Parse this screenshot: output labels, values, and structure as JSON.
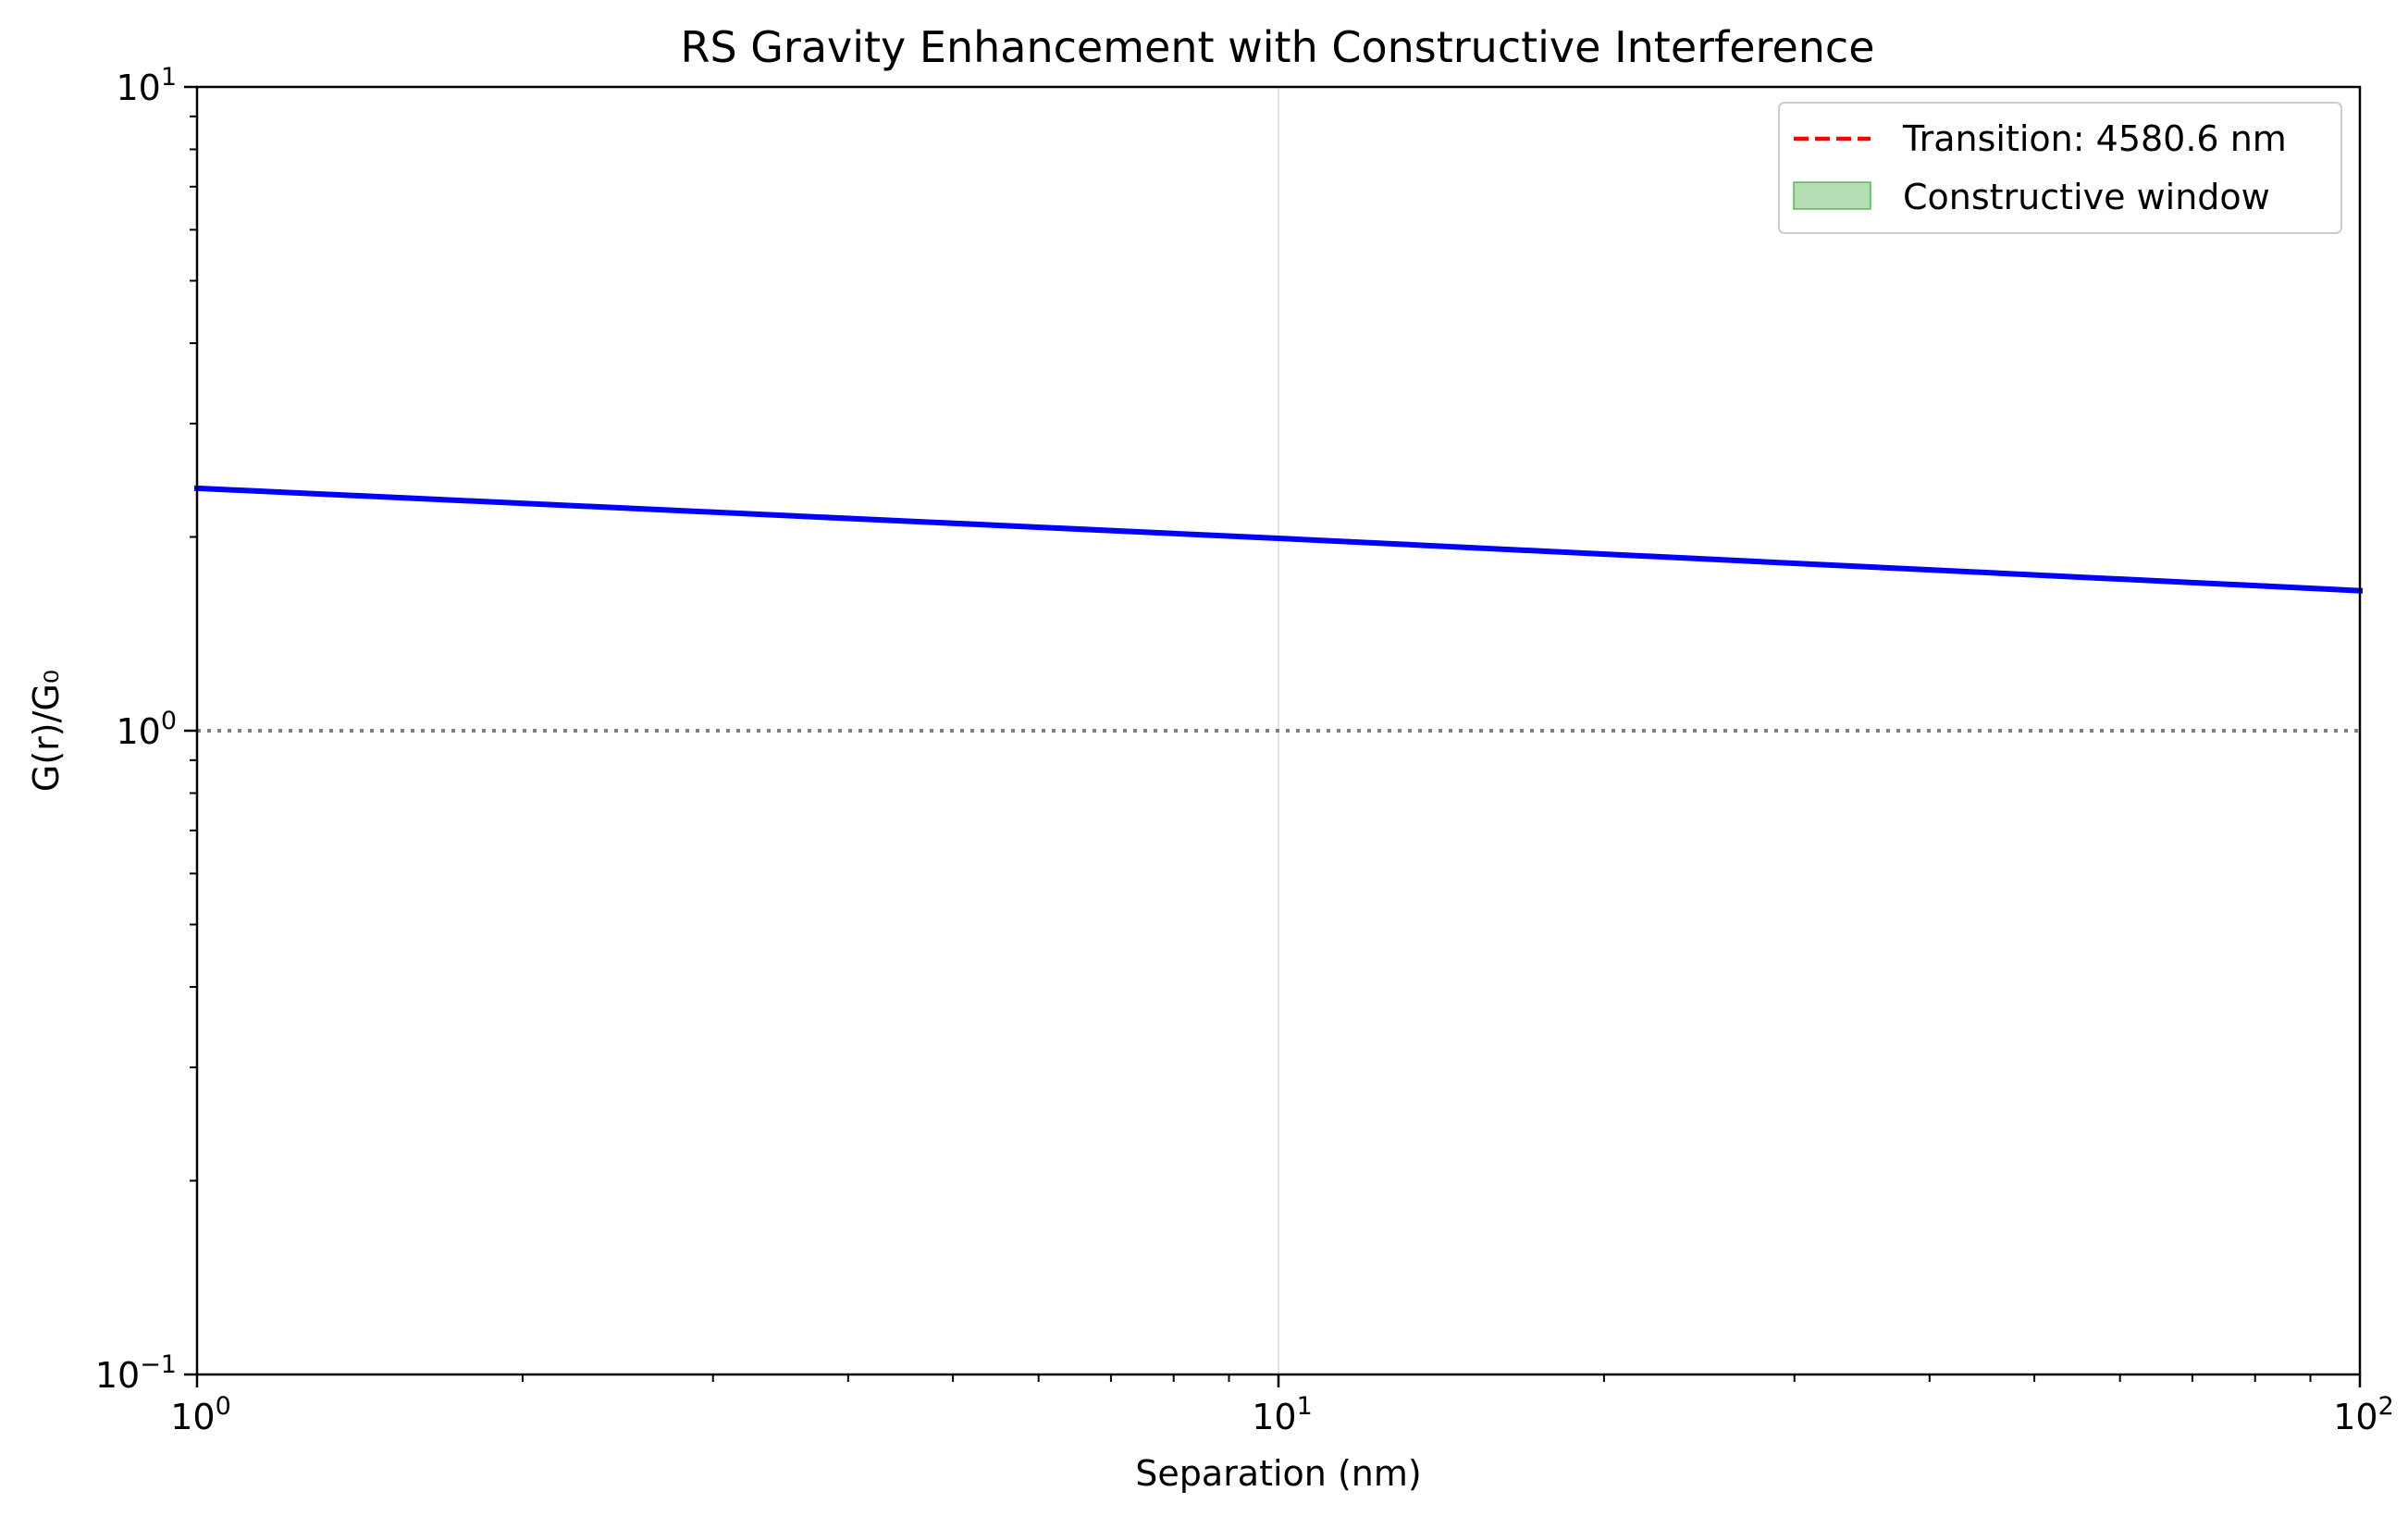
{
  "chart_data": {
    "type": "line",
    "title": "RS Gravity Enhancement with Constructive Interference",
    "xlabel": "Separation (nm)",
    "ylabel": "G(r)/G₀",
    "x_scale": "log",
    "y_scale": "log",
    "xlim": [
      1,
      100
    ],
    "ylim": [
      0.1,
      10
    ],
    "x_ticks": [
      {
        "value": 1,
        "base": "10",
        "exp": "0"
      },
      {
        "value": 10,
        "base": "10",
        "exp": "1"
      },
      {
        "value": 100,
        "base": "10",
        "exp": "2"
      }
    ],
    "y_ticks": [
      {
        "value": 0.1,
        "base": "10",
        "exp": "−1"
      },
      {
        "value": 1,
        "base": "10",
        "exp": "0"
      },
      {
        "value": 10,
        "base": "10",
        "exp": "1"
      }
    ],
    "grid": "vertical major gridlines",
    "legend_position": "top-right",
    "series": [
      {
        "style": "solid",
        "color": "#0000ff",
        "x": [
          1,
          10,
          100
        ],
        "y": [
          2.38,
          1.99,
          1.65
        ]
      }
    ],
    "reference_lines": [
      {
        "orientation": "horizontal",
        "y": 1,
        "style": "dotted",
        "color": "#808080"
      }
    ],
    "legend": [
      {
        "label": "Transition: 4580.6 nm",
        "marker": "dashed-line",
        "color": "#ff0000"
      },
      {
        "label": "Constructive window",
        "marker": "patch",
        "color": "#2ca02c",
        "alpha": 0.35
      }
    ]
  }
}
